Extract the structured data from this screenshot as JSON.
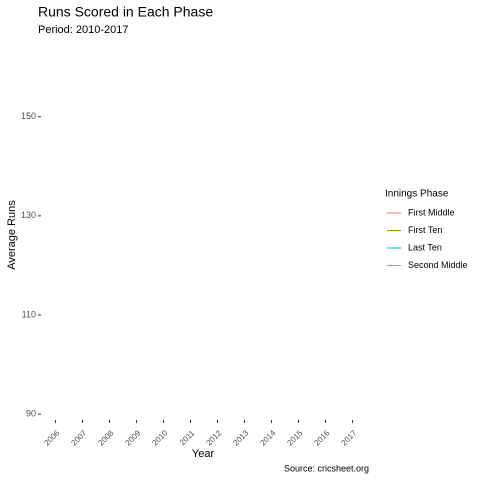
{
  "chart_data": {
    "type": "line",
    "title": "Runs Scored in Each Phase",
    "subtitle": "Period: 2010-2017",
    "caption": "Source: cricsheet.org",
    "x_label": "Year",
    "y_label": "Average Runs",
    "legend_title": "Innings Phase",
    "legend_position": "right",
    "grid": false,
    "categories": [
      "2006",
      "2007",
      "2008",
      "2009",
      "2010",
      "2011",
      "2012",
      "2013",
      "2014",
      "2015",
      "2016",
      "2017"
    ],
    "series": [
      {
        "name": "First Middle",
        "color": "#F8766D",
        "values": [
          null,
          null,
          null,
          null,
          null,
          null,
          null,
          null,
          null,
          null,
          null,
          null
        ]
      },
      {
        "name": "First Ten",
        "color": "#7CAE00",
        "values": [
          null,
          null,
          null,
          null,
          null,
          null,
          null,
          null,
          null,
          null,
          null,
          null
        ]
      },
      {
        "name": "Last Ten",
        "color": "#00BFC4",
        "values": [
          null,
          null,
          null,
          null,
          null,
          null,
          null,
          null,
          null,
          null,
          null,
          null
        ]
      },
      {
        "name": "Second Middle",
        "color": "#C77CFF",
        "values": [
          null,
          null,
          null,
          null,
          null,
          null,
          null,
          null,
          null,
          null,
          null,
          null
        ]
      }
    ],
    "ylim": [
      88,
      156
    ],
    "yticks": [
      90,
      110,
      130,
      150
    ]
  }
}
